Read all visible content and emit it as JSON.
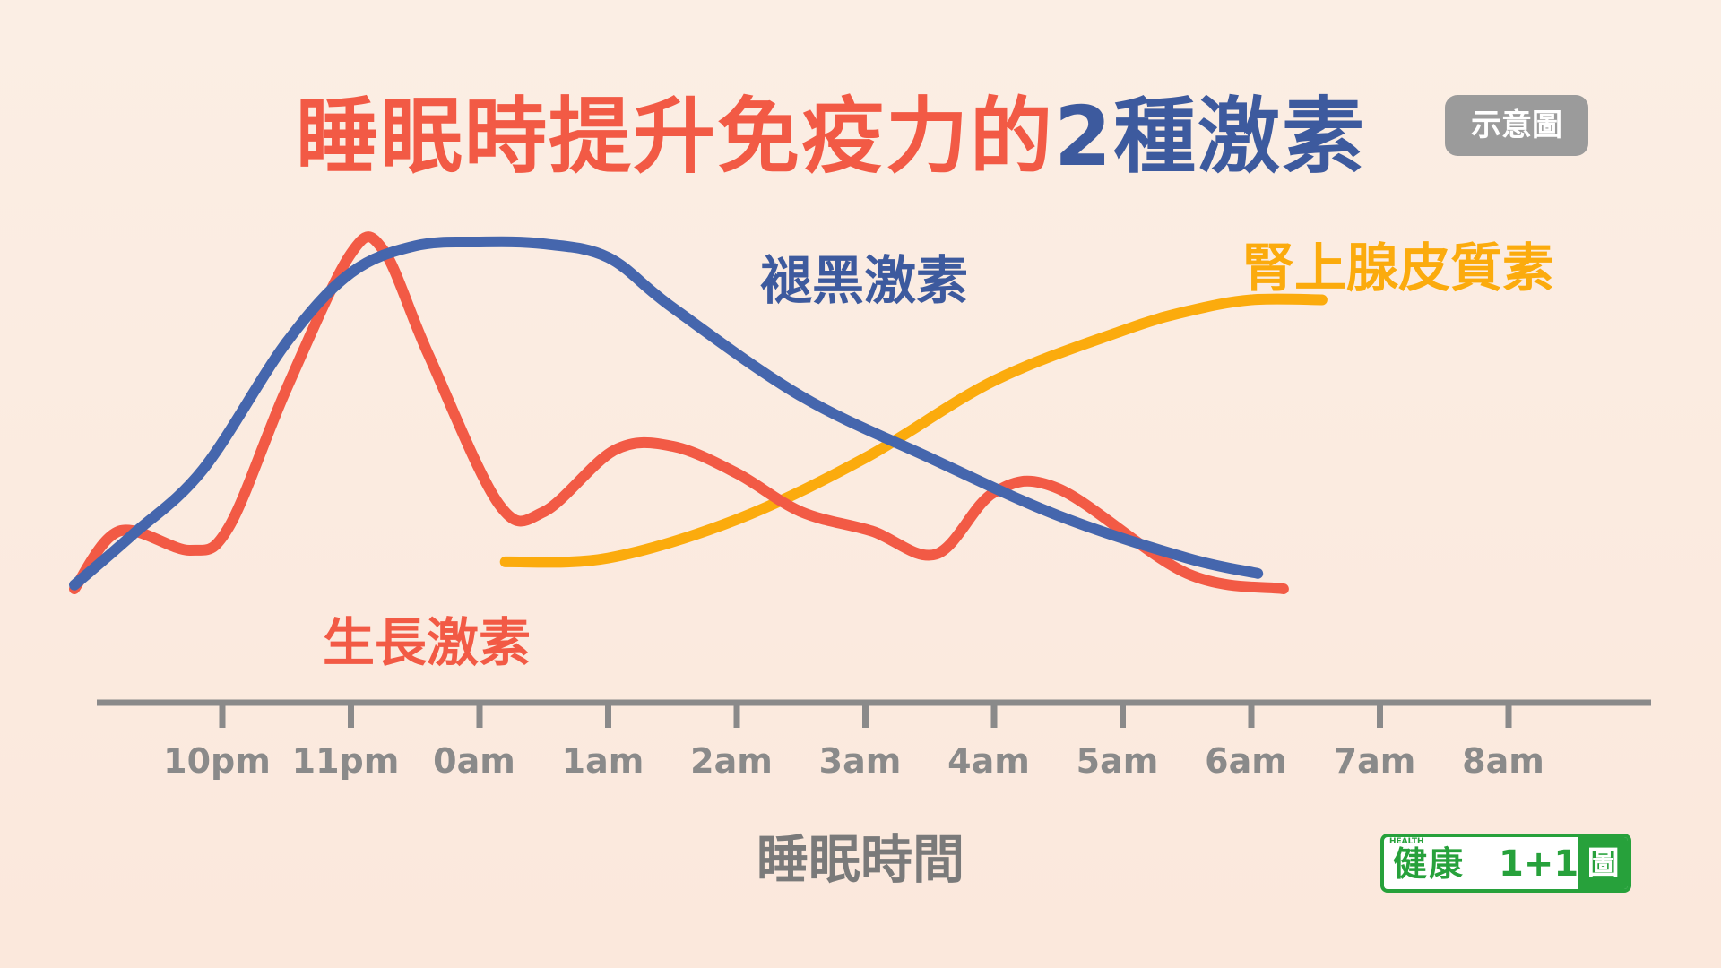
{
  "title": {
    "part1": "睡眠時提升免疫力的",
    "part2": "2種激素"
  },
  "badge": "示意圖",
  "chart_data": {
    "type": "line",
    "xlabel": "睡眠時間",
    "categories": [
      "10pm",
      "11pm",
      "0am",
      "1am",
      "2am",
      "3am",
      "4am",
      "5am",
      "6am",
      "7am",
      "8am"
    ],
    "series": [
      {
        "name": "褪黑激素",
        "color": "#4566ad",
        "x": [
          -1.15,
          -0.7,
          -0.15,
          0.5,
          1.0,
          1.5,
          2.0,
          2.5,
          3.0,
          3.5,
          4.5,
          5.5,
          6.5,
          7.5,
          8.05
        ],
        "y": [
          0.11,
          0.24,
          0.41,
          0.74,
          0.92,
          0.99,
          1.0,
          0.995,
          0.96,
          0.83,
          0.6,
          0.44,
          0.29,
          0.18,
          0.14
        ]
      },
      {
        "name": "生長激素",
        "color": "#f25a45",
        "x": [
          -1.15,
          -0.8,
          -0.25,
          0.05,
          0.5,
          1.0,
          1.25,
          1.6,
          2.15,
          2.5,
          3.05,
          3.5,
          4.0,
          4.5,
          5.05,
          5.55,
          6.0,
          6.5,
          7.5,
          8.25
        ],
        "y": [
          0.1,
          0.25,
          0.2,
          0.26,
          0.62,
          0.97,
          0.98,
          0.71,
          0.32,
          0.3,
          0.46,
          0.47,
          0.4,
          0.3,
          0.25,
          0.19,
          0.35,
          0.36,
          0.14,
          0.1
        ]
      },
      {
        "name": "腎上腺皮質素",
        "color": "#fbab0d",
        "x": [
          2.2,
          3.0,
          4.0,
          5.0,
          6.0,
          7.0,
          7.5,
          8.0,
          8.55
        ],
        "y": [
          0.17,
          0.18,
          0.28,
          0.44,
          0.64,
          0.77,
          0.82,
          0.85,
          0.85
        ]
      }
    ],
    "xlim": [
      -1.2,
      9.0
    ],
    "ylim": [
      0,
      1
    ],
    "yticks": "none",
    "grid": false,
    "legend": "inline labels near each curve"
  },
  "logo": {
    "health": "HEALTH",
    "left": "健康",
    "mid": "1+1",
    "right": "圖解",
    "color": "#27a13b"
  }
}
